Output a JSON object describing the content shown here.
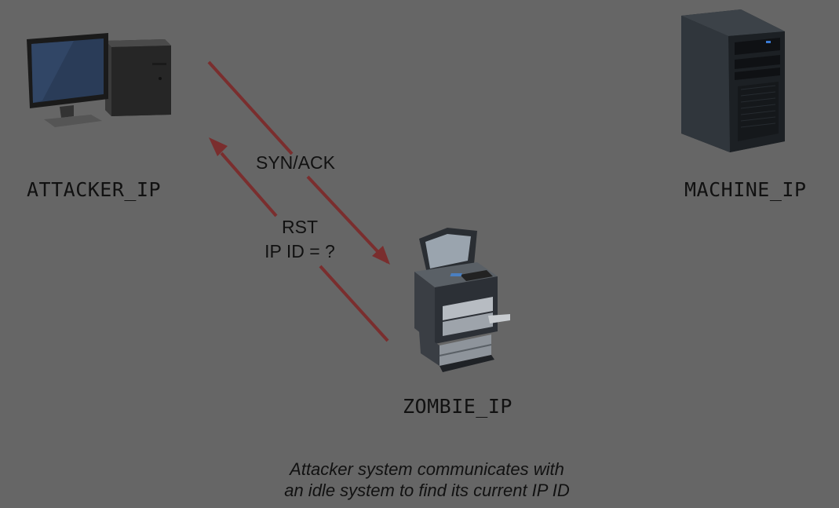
{
  "hosts": {
    "attacker": {
      "label": "ATTACKER_IP",
      "icon": "desktop-computer-icon"
    },
    "machine": {
      "label": "MACHINE_IP",
      "icon": "tower-server-icon"
    },
    "zombie": {
      "label": "ZOMBIE_IP",
      "icon": "printer-copier-icon"
    }
  },
  "messages": {
    "syn_ack": {
      "label": "SYN/ACK",
      "direction": "attacker-to-zombie"
    },
    "rst": {
      "line1": "RST",
      "line2": "IP ID = ?",
      "direction": "zombie-to-attacker"
    }
  },
  "caption": {
    "line1": "Attacker system communicates with",
    "line2": "an idle system to find its current IP ID"
  },
  "colors": {
    "background": "#666666",
    "arrow": "#7a2e2e",
    "text": "#111111"
  }
}
